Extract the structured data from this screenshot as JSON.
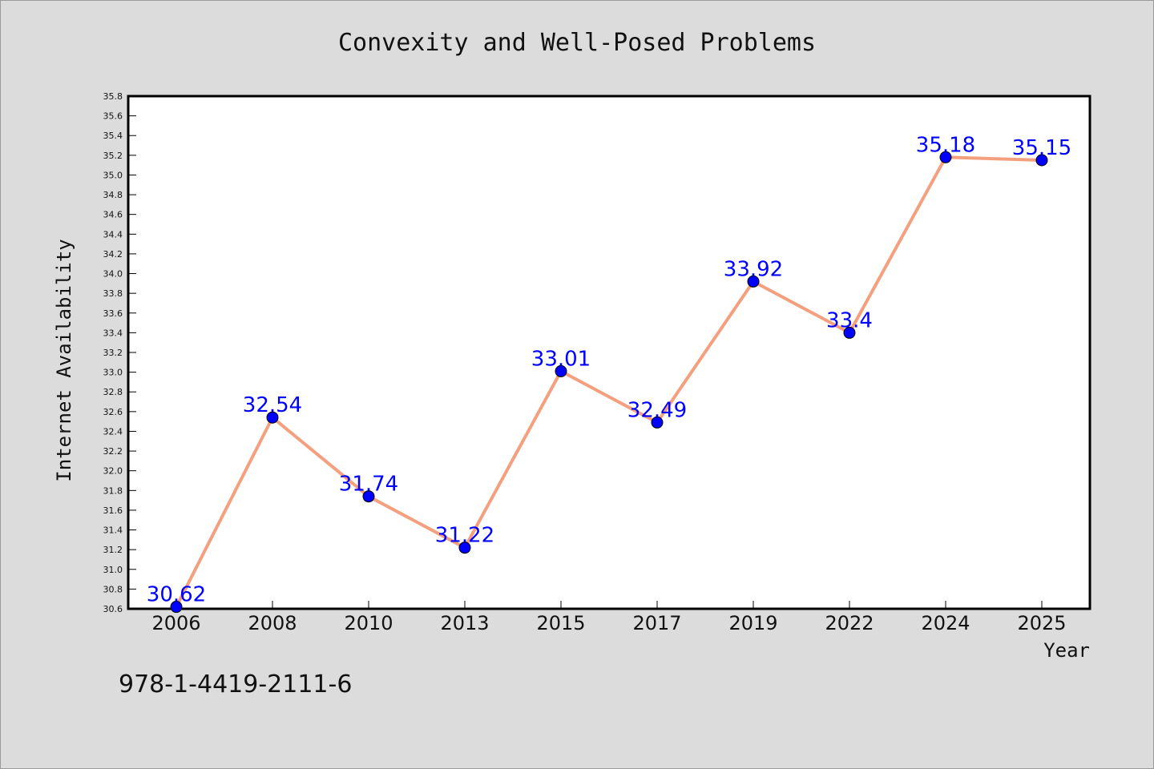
{
  "chart_data": {
    "type": "line",
    "title": "Convexity and Well-Posed Problems",
    "xlabel": "Year",
    "ylabel": "Internet Availability",
    "categories": [
      "2006",
      "2008",
      "2010",
      "2013",
      "2015",
      "2017",
      "2019",
      "2022",
      "2024",
      "2025"
    ],
    "values": [
      30.62,
      32.54,
      31.74,
      31.22,
      33.01,
      32.49,
      33.92,
      33.4,
      35.18,
      35.15
    ],
    "data_labels": [
      "30.62",
      "32.54",
      "31.74",
      "31.22",
      "33.01",
      "32.49",
      "33.92",
      "33.4",
      "35.18",
      "35.15"
    ],
    "ylim": [
      30.6,
      35.8
    ],
    "y_ticks": [
      "30.6",
      "30.8",
      "31.0",
      "31.2",
      "31.4",
      "31.6",
      "31.8",
      "32.0",
      "32.2",
      "32.4",
      "32.6",
      "32.8",
      "33.0",
      "33.2",
      "33.4",
      "33.6",
      "33.8",
      "34.0",
      "34.2",
      "34.4",
      "34.6",
      "34.8",
      "35.0",
      "35.2",
      "35.4",
      "35.6",
      "35.8"
    ],
    "grid": false,
    "line_color": "#f4a07f",
    "marker_color": "#0000ff",
    "label_color": "#0000ff"
  },
  "footer": {
    "isbn": "978-1-4419-2111-6"
  }
}
